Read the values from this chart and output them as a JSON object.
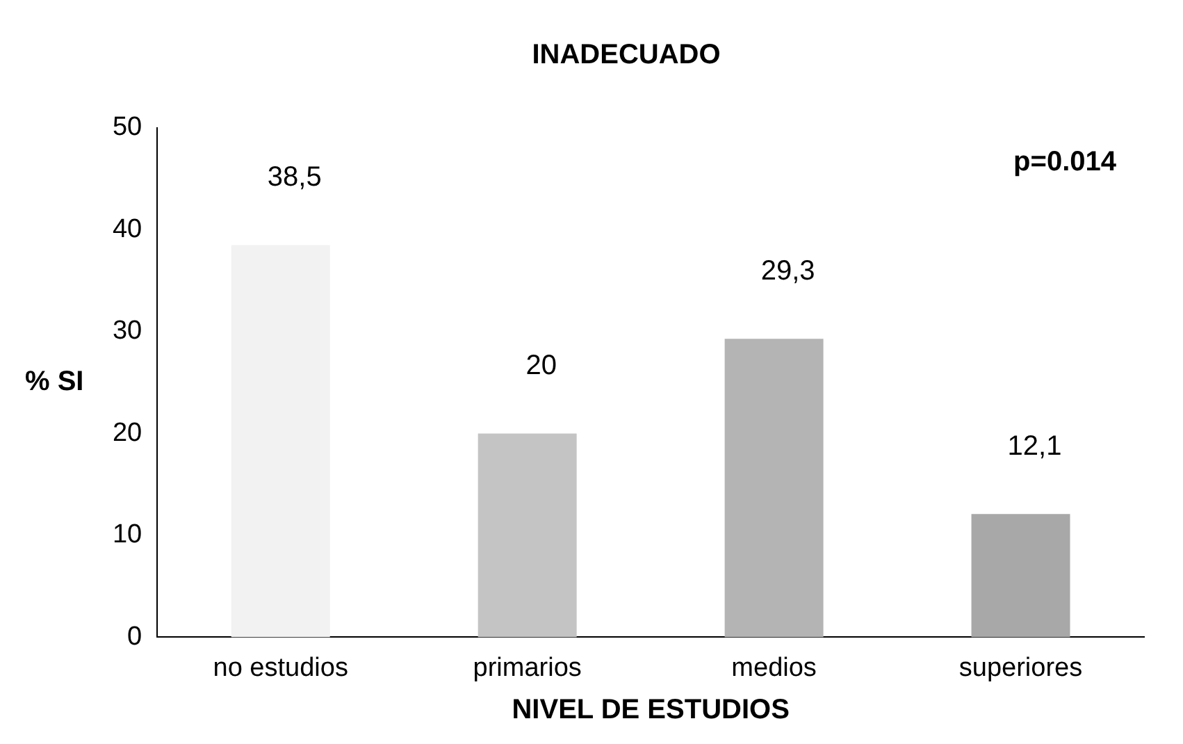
{
  "chart_data": {
    "type": "bar",
    "title": "INADECUADO",
    "xlabel": "NIVEL DE ESTUDIOS",
    "ylabel": "% SI",
    "categories": [
      "no estudios",
      "primarios",
      "medios",
      "superiores"
    ],
    "values": [
      38.5,
      20,
      29.3,
      12.1
    ],
    "value_labels": [
      "38,5",
      "20",
      "29,3",
      "12,1"
    ],
    "colors": [
      "#f2f2f2",
      "#c4c4c4",
      "#b4b4b4",
      "#a8a8a8"
    ],
    "ylim": [
      0,
      50
    ],
    "yticks": [
      0,
      10,
      20,
      30,
      40,
      50
    ],
    "grid": false,
    "legend": false,
    "annotations": [
      "p=0.014"
    ]
  }
}
